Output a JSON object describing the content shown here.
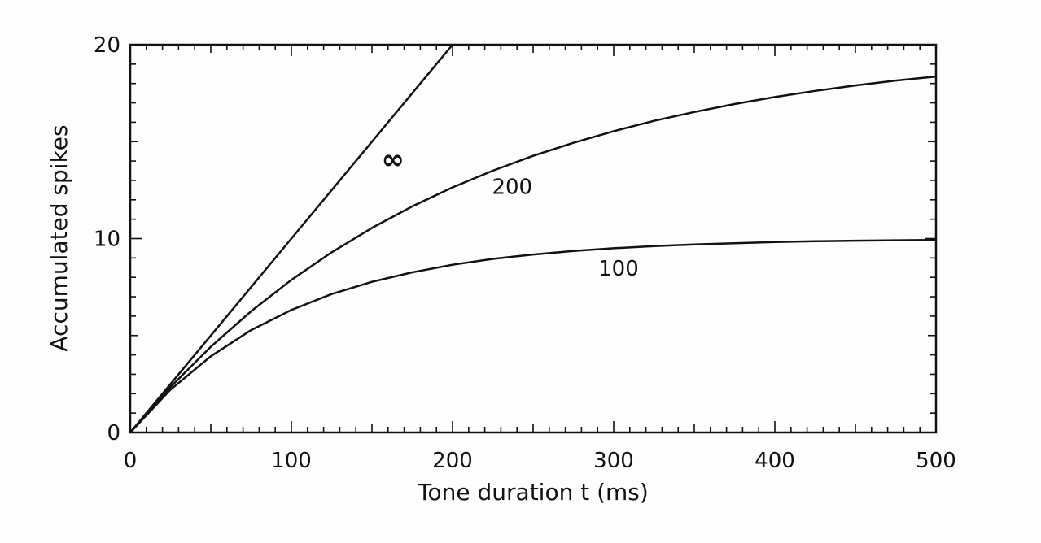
{
  "chart_data": {
    "type": "line",
    "xlabel": "Tone duration t (ms)",
    "ylabel": "Accumulated spikes",
    "xlim": [
      0,
      500
    ],
    "ylim": [
      0,
      20
    ],
    "x_ticks": [
      "0",
      "100",
      "200",
      "300",
      "400",
      "500"
    ],
    "y_ticks": [
      "0",
      "10",
      "20"
    ],
    "grid": false,
    "series": [
      {
        "name": "∞",
        "x": [
          0,
          50,
          100,
          150,
          200
        ],
        "y": [
          0,
          5,
          10,
          15,
          20
        ]
      },
      {
        "name": "200",
        "x": [
          0,
          25,
          50,
          75,
          100,
          125,
          150,
          175,
          200,
          225,
          250,
          275,
          300,
          325,
          350,
          375,
          400,
          425,
          450,
          475,
          500
        ],
        "y": [
          0,
          2.35,
          4.42,
          6.25,
          7.87,
          9.29,
          10.55,
          11.66,
          12.64,
          13.5,
          14.27,
          14.94,
          15.54,
          16.07,
          16.53,
          16.94,
          17.3,
          17.62,
          17.9,
          18.15,
          18.36
        ]
      },
      {
        "name": "100",
        "x": [
          0,
          25,
          50,
          75,
          100,
          125,
          150,
          175,
          200,
          225,
          250,
          275,
          300,
          325,
          350,
          375,
          400,
          425,
          450,
          475,
          500
        ],
        "y": [
          0,
          2.21,
          3.93,
          5.28,
          6.32,
          7.14,
          7.77,
          8.26,
          8.65,
          8.95,
          9.18,
          9.36,
          9.5,
          9.61,
          9.7,
          9.76,
          9.82,
          9.86,
          9.89,
          9.91,
          9.93
        ]
      }
    ]
  }
}
